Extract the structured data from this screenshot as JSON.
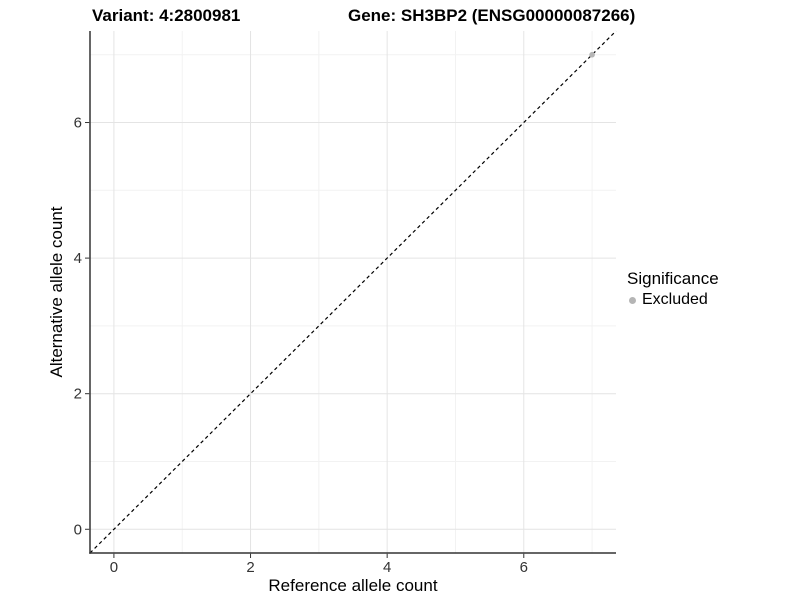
{
  "chart_data": {
    "type": "scatter",
    "title_left": "Variant: 4:2800981",
    "title_right": "Gene: SH3BP2 (ENSG00000087266)",
    "xlabel": "Reference allele count",
    "ylabel": "Alternative allele count",
    "xlim": [
      -0.35,
      7.35
    ],
    "ylim": [
      -0.35,
      7.35
    ],
    "x_ticks": [
      0,
      2,
      4,
      6
    ],
    "y_ticks": [
      0,
      2,
      4,
      6
    ],
    "x_minor_gridlines": [
      1,
      3,
      5,
      7
    ],
    "y_minor_gridlines": [
      1,
      3,
      5,
      7
    ],
    "grid": true,
    "legend_position": "right",
    "legend": {
      "title": "Significance",
      "items": [
        {
          "label": "Excluded",
          "color": "#b5b5b5"
        }
      ]
    },
    "reference_line": {
      "style": "dashed",
      "color": "#000000",
      "from": {
        "x": -0.35,
        "y": -0.35
      },
      "to": {
        "x": 7.35,
        "y": 7.35
      }
    },
    "series": [
      {
        "name": "Excluded",
        "color": "#b5b5b5",
        "points": [
          {
            "x": 7,
            "y": 7
          }
        ]
      }
    ],
    "colors": {
      "background": "#ffffff",
      "grid_major": "#e4e4e4",
      "grid_minor": "#f2f2f2",
      "axis_line": "#333333",
      "tick_label": "#333333"
    }
  }
}
